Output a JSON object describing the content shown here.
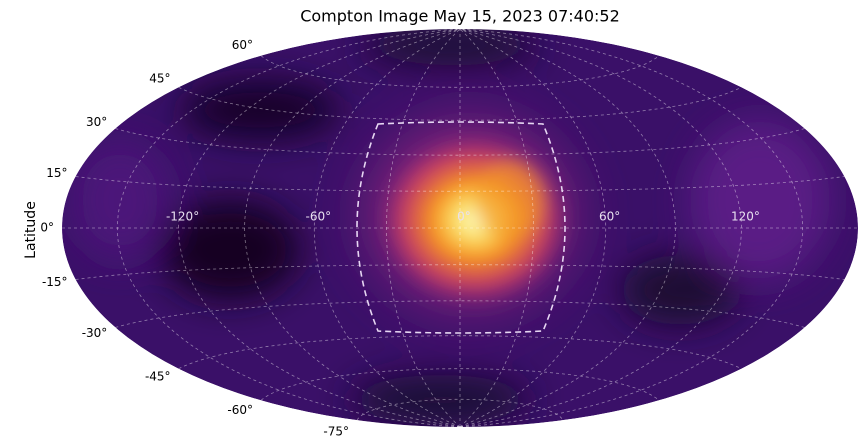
{
  "chart_data": {
    "type": "skymap",
    "projection": "hammer",
    "title": "Compton Image May 15, 2023 07:40:52",
    "ylabel": "Latitude",
    "xticks": [
      {
        "value": -120,
        "label": "-120°"
      },
      {
        "value": -60,
        "label": "-60°"
      },
      {
        "value": 0,
        "label": "0°"
      },
      {
        "value": 60,
        "label": "60°"
      },
      {
        "value": 120,
        "label": "120°"
      }
    ],
    "yticks": [
      {
        "value": 60,
        "label": "60°"
      },
      {
        "value": 45,
        "label": "45°"
      },
      {
        "value": 30,
        "label": "30°"
      },
      {
        "value": 15,
        "label": "15°"
      },
      {
        "value": 0,
        "label": "0°"
      },
      {
        "value": -15,
        "label": "-15°"
      },
      {
        "value": -30,
        "label": "-30°"
      },
      {
        "value": -45,
        "label": "-45°"
      },
      {
        "value": -60,
        "label": "-60°"
      },
      {
        "value": -75,
        "label": "-75°"
      }
    ],
    "xlim": [
      -180,
      180
    ],
    "ylim": [
      -90,
      90
    ],
    "grid": true
  }
}
